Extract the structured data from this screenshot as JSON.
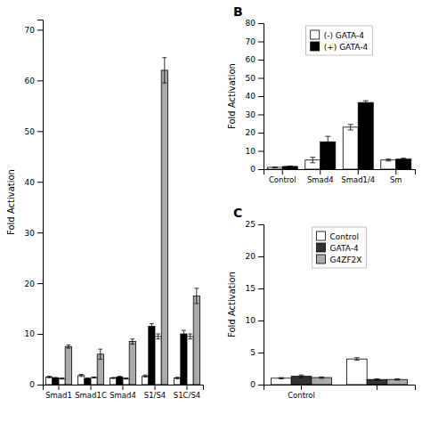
{
  "chart_data": [
    {
      "type": "bar",
      "ylabel": "Fold Activation",
      "categories": [
        "Smad1",
        "Smad1C",
        "Smad4",
        "S1/S4",
        "S1C/S4"
      ],
      "series": [
        {
          "color": "white",
          "values": [
            1.5,
            1.8,
            1.3,
            1.7,
            1.3
          ],
          "errors": [
            0.15,
            0.2,
            0.1,
            0.2,
            0.15
          ]
        },
        {
          "color": "black",
          "values": [
            1.3,
            1.2,
            1.5,
            11.5,
            10.0
          ],
          "errors": [
            0.1,
            0.1,
            0.15,
            0.5,
            0.7
          ]
        },
        {
          "color": "white",
          "values": [
            1.2,
            1.4,
            1.2,
            9.5,
            9.5
          ],
          "errors": [
            0.1,
            0.1,
            0.1,
            0.5,
            0.5
          ]
        },
        {
          "color": "#aaaaaa",
          "values": [
            7.5,
            6.0,
            8.5,
            62.0,
            17.5
          ],
          "errors": [
            0.3,
            1.0,
            0.5,
            2.5,
            1.5
          ]
        }
      ],
      "ylim": [
        0,
        72
      ],
      "yticks": [
        0,
        10,
        20,
        30,
        40,
        50,
        60,
        70
      ],
      "grid": false
    },
    {
      "type": "bar",
      "title": "B",
      "ylabel": "Fold Activation",
      "categories": [
        "Control",
        "Smad4",
        "Smad1/4",
        "Sm"
      ],
      "series": [
        {
          "name": "(-) GATA-4",
          "color": "white",
          "values": [
            1.0,
            5.0,
            23.0,
            5.0
          ],
          "errors": [
            0.15,
            1.5,
            1.5,
            0.5
          ]
        },
        {
          "name": "(+) GATA-4",
          "color": "black",
          "values": [
            1.5,
            15.0,
            36.5,
            5.5
          ],
          "errors": [
            0.2,
            3.0,
            1.0,
            0.5
          ]
        }
      ],
      "ylim": [
        0,
        80
      ],
      "yticks": [
        0,
        10,
        20,
        30,
        40,
        50,
        60,
        70,
        80
      ],
      "grid": false,
      "legend": "upper center"
    },
    {
      "type": "bar",
      "title": "C",
      "ylabel": "Fold Activation",
      "categories": [
        "Control",
        null
      ],
      "series": [
        {
          "name": "Control",
          "color": "white",
          "values": [
            1.0,
            4.0
          ],
          "errors": [
            0.1,
            0.2
          ]
        },
        {
          "name": "GATA-4",
          "color": "#333333",
          "values": [
            1.3,
            0.8
          ],
          "errors": [
            0.2,
            0.1
          ]
        },
        {
          "name": "G4ZF2X",
          "color": "#aaaaaa",
          "values": [
            1.1,
            0.8
          ],
          "errors": [
            0.1,
            0.1
          ]
        }
      ],
      "ylim": [
        0,
        25
      ],
      "yticks": [
        0,
        5,
        10,
        15,
        20,
        25
      ],
      "grid": false,
      "legend": "upper center"
    }
  ]
}
